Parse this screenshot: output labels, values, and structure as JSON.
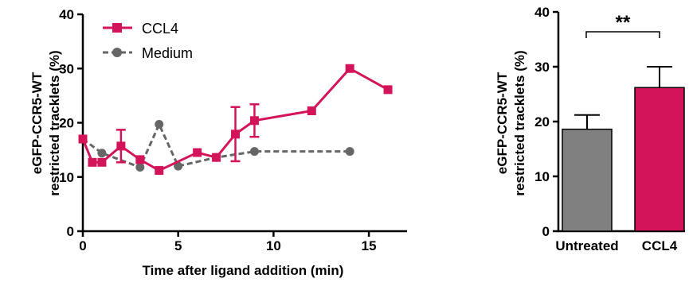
{
  "chart_data": [
    {
      "type": "line",
      "ylabel_line1": "eGFP-CCR5-WT",
      "ylabel_line2": "restricted tracklets (%)",
      "xlabel": "Time after ligand addition (min)",
      "xlim": [
        0,
        17
      ],
      "ylim": [
        0,
        40
      ],
      "xticks": [
        "0",
        "5",
        "10",
        "15"
      ],
      "yticks": [
        "0",
        "10",
        "20",
        "30",
        "40"
      ],
      "legend_position": "top-left",
      "series": [
        {
          "name": "CCL4",
          "color": "#d4145a",
          "line_style": "solid",
          "marker": "square",
          "x": [
            0,
            0.5,
            1,
            2,
            3,
            4,
            6,
            7,
            8,
            9,
            12,
            14,
            16
          ],
          "y": [
            17,
            12.7,
            12.7,
            15.7,
            13.2,
            11.2,
            14.5,
            13.6,
            17.9,
            20.4,
            22.2,
            30,
            26.1
          ],
          "error": [
            0,
            0,
            0,
            3,
            0,
            0,
            0,
            0,
            5,
            3,
            0,
            0,
            0
          ]
        },
        {
          "name": "Medium",
          "color": "#666666",
          "line_style": "dashed",
          "marker": "circle",
          "x": [
            0,
            1,
            3,
            4,
            5,
            7,
            9,
            14
          ],
          "y": [
            17,
            14.4,
            11.8,
            19.7,
            12,
            13.6,
            14.7,
            14.7
          ],
          "error": [
            0,
            0,
            0,
            0,
            0,
            0,
            0,
            0
          ]
        }
      ]
    },
    {
      "type": "bar",
      "ylabel_line1": "eGFP-CCR5-WT",
      "ylabel_line2": "restricted tracklets (%)",
      "categories": [
        "Untreated",
        "CCL4"
      ],
      "values": [
        18.6,
        26.2
      ],
      "errors": [
        2.6,
        3.8
      ],
      "colors": [
        "#808080",
        "#d4145a"
      ],
      "ylim": [
        0,
        40
      ],
      "yticks": [
        "0",
        "10",
        "20",
        "30",
        "40"
      ],
      "annotation": "**"
    }
  ]
}
